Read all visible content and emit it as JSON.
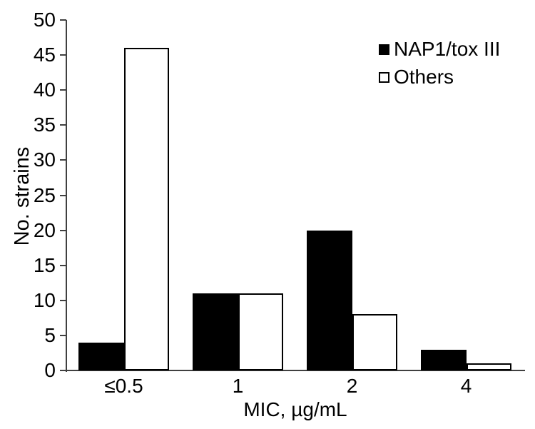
{
  "chart_data": {
    "type": "bar",
    "categories": [
      "≤0.5",
      "1",
      "2",
      "4"
    ],
    "series": [
      {
        "name": "NAP1/tox III",
        "values": [
          4,
          11,
          20,
          3
        ],
        "fill": "#000000",
        "style": "filled"
      },
      {
        "name": "Others",
        "values": [
          46,
          11,
          8,
          1
        ],
        "fill": "#ffffff",
        "outline": "#000000",
        "style": "open"
      }
    ],
    "title": "",
    "xlabel": "MIC, µg/mL",
    "ylabel": "No. strains",
    "ylim": [
      0,
      50
    ],
    "yticks": [
      0,
      5,
      10,
      15,
      20,
      25,
      30,
      35,
      40,
      45,
      50
    ],
    "grid": false,
    "legend_position": "top-right",
    "colors": {
      "axis": "#404040",
      "text": "#000000",
      "background": "#ffffff"
    }
  }
}
